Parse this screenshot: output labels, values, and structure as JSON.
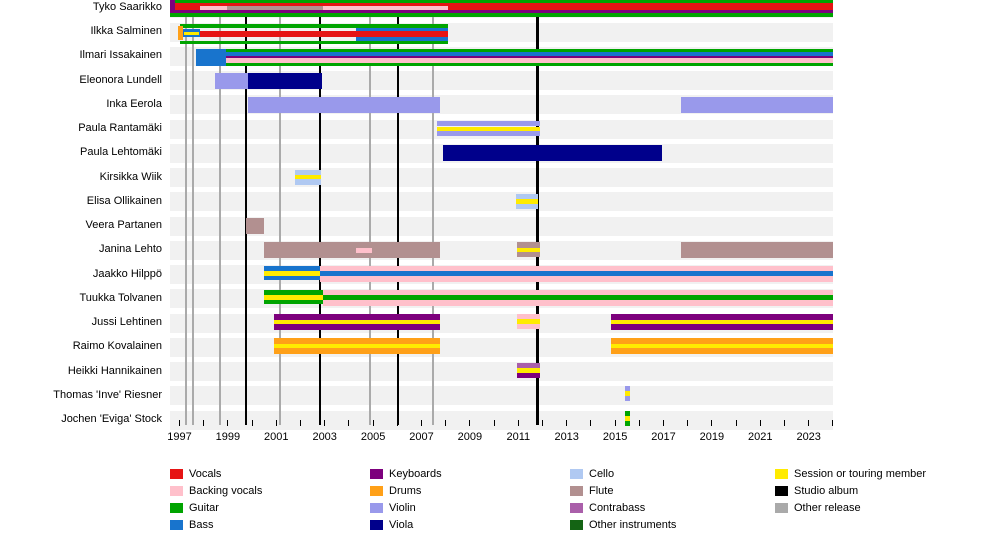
{
  "palette": {
    "vocals": "#E61414",
    "backing_vocals": "#FFC0CB",
    "guitar": "#00A400",
    "bass": "#1874CD",
    "keyboards": "#7D007D",
    "drums": "#FFA018",
    "violin": "#9999EB",
    "viola": "#00008B",
    "cello": "#B0C9F2",
    "flute": "#B29090",
    "contrabass": "#AA5FAA",
    "other_instruments": "#146414",
    "session": "#FFEB00",
    "studio_album": "#000000",
    "other_release": "#AAAAAA",
    "row_band": "#f1f1f1"
  },
  "chart_data": {
    "type": "timeline",
    "title": "",
    "x_axis": {
      "start_year": 1996.6,
      "end_year": 2024.0,
      "label_years": [
        1997,
        1999,
        2001,
        2003,
        2005,
        2007,
        2009,
        2011,
        2013,
        2015,
        2017,
        2019,
        2021,
        2023
      ],
      "tick_every_years": 1
    },
    "releases": {
      "studio_album_years": [
        1999.75,
        2002.8,
        2006.03,
        2011.8
      ],
      "other_release_years": [
        1997.27,
        1997.56,
        1998.67,
        2001.15,
        2004.87,
        2007.47
      ]
    },
    "members": [
      {
        "name": "Tyko Saarikko",
        "bars": [
          {
            "f": 1996.6,
            "t": 2024.0,
            "o": 2.0,
            "h": 3.4,
            "r": "guitar"
          },
          {
            "f": 1996.6,
            "t": 2024.0,
            "o": 5.4,
            "h": 6.4,
            "r": "vocals"
          },
          {
            "f": 1996.6,
            "t": 1996.82,
            "o": 2.0,
            "h": 11.0,
            "r": "keyboards"
          },
          {
            "f": 1997.85,
            "t": 1998.95,
            "o": 8.4,
            "h": 3.4,
            "r": "backing_vocals"
          },
          {
            "f": 1998.95,
            "t": 2002.93,
            "o": 8.4,
            "h": 3.4,
            "r": "flute"
          },
          {
            "f": 2002.93,
            "t": 2008.1,
            "o": 8.4,
            "h": 3.4,
            "r": "backing_vocals"
          },
          {
            "f": 1996.6,
            "t": 2024.0,
            "o": 11.8,
            "h": 3.2,
            "r": "keyboards"
          },
          {
            "f": 1996.6,
            "t": 2024.0,
            "o": 15.0,
            "h": 3.5,
            "r": "guitar"
          }
        ]
      },
      {
        "name": "Ilkka Salminen",
        "bars": [
          {
            "f": 1997.02,
            "t": 2008.1,
            "o": 1.8,
            "h": 3.5,
            "r": "guitar"
          },
          {
            "f": 2004.3,
            "t": 2008.1,
            "o": 5.3,
            "h": 3.5,
            "r": "bass"
          },
          {
            "f": 1996.94,
            "t": 1997.15,
            "o": 3.8,
            "h": 14.0,
            "r": "drums"
          },
          {
            "f": 1997.13,
            "t": 1997.85,
            "o": 6.8,
            "h": 8.0,
            "r": "bass"
          },
          {
            "f": 1997.85,
            "t": 2008.1,
            "o": 8.8,
            "h": 6.0,
            "r": "vocals"
          },
          {
            "f": 1997.19,
            "t": 1997.81,
            "o": 10.0,
            "h": 3.0,
            "r": "session"
          },
          {
            "f": 2004.3,
            "t": 2008.1,
            "o": 14.8,
            "h": 3.5,
            "r": "bass"
          },
          {
            "f": 1997.02,
            "t": 2008.1,
            "o": 18.3,
            "h": 3.5,
            "r": "guitar"
          }
        ]
      },
      {
        "name": "Ilmari Issakainen",
        "bars": [
          {
            "f": 1998.92,
            "t": 2024.0,
            "o": 2.5,
            "h": 3.4,
            "r": "guitar"
          },
          {
            "f": 1998.92,
            "t": 2024.0,
            "o": 5.9,
            "h": 3.3,
            "r": "bass"
          },
          {
            "f": 1998.92,
            "t": 2024.0,
            "o": 9.2,
            "h": 2.6,
            "r": "keyboards"
          },
          {
            "f": 1998.92,
            "t": 2024.0,
            "o": 11.8,
            "h": 4.6,
            "r": "backing_vocals"
          },
          {
            "f": 1998.92,
            "t": 2024.0,
            "o": 16.4,
            "h": 3.4,
            "r": "guitar"
          },
          {
            "f": 1997.68,
            "t": 1998.92,
            "o": 2.5,
            "h": 17.0,
            "r": "bass"
          }
        ]
      },
      {
        "name": "Eleonora Lundell",
        "bars": [
          {
            "f": 1998.47,
            "t": 1999.83,
            "o": 2.0,
            "h": 16.0,
            "r": "violin"
          },
          {
            "f": 1999.83,
            "t": 2002.89,
            "o": 2.0,
            "h": 16.0,
            "r": "viola"
          }
        ]
      },
      {
        "name": "Inka Eerola",
        "bars": [
          {
            "f": 1999.83,
            "t": 2007.77,
            "o": 2.0,
            "h": 16.0,
            "r": "violin"
          },
          {
            "f": 2017.72,
            "t": 2024.0,
            "o": 2.0,
            "h": 16.0,
            "r": "violin"
          }
        ]
      },
      {
        "name": "Paula Rantamäki",
        "bars": [
          {
            "f": 2007.64,
            "t": 2011.9,
            "o": 2.0,
            "h": 5.3,
            "r": "violin"
          },
          {
            "f": 2007.64,
            "t": 2011.9,
            "o": 7.3,
            "h": 4.4,
            "r": "session"
          },
          {
            "f": 2007.64,
            "t": 2011.9,
            "o": 11.7,
            "h": 5.3,
            "r": "violin"
          }
        ]
      },
      {
        "name": "Paula Lehtomäki",
        "bars": [
          {
            "f": 2007.89,
            "t": 2016.94,
            "o": 2.0,
            "h": 16.0,
            "r": "viola"
          }
        ]
      },
      {
        "name": "Kirsikka Wiik",
        "bars": [
          {
            "f": 2001.77,
            "t": 2002.85,
            "o": 2.0,
            "h": 5.3,
            "r": "cello"
          },
          {
            "f": 2001.77,
            "t": 2002.85,
            "o": 7.3,
            "h": 4.4,
            "r": "session"
          },
          {
            "f": 2001.77,
            "t": 2002.85,
            "o": 11.7,
            "h": 5.3,
            "r": "cello"
          }
        ]
      },
      {
        "name": "Elisa Ollikainen",
        "bars": [
          {
            "f": 2010.9,
            "t": 2011.8,
            "o": 2.0,
            "h": 5.3,
            "r": "cello"
          },
          {
            "f": 2010.9,
            "t": 2011.8,
            "o": 7.3,
            "h": 4.4,
            "r": "session"
          },
          {
            "f": 2010.9,
            "t": 2011.8,
            "o": 11.7,
            "h": 5.3,
            "r": "cello"
          }
        ]
      },
      {
        "name": "Veera Partanen",
        "bars": [
          {
            "f": 1999.75,
            "t": 2000.49,
            "o": 2.0,
            "h": 16.0,
            "r": "flute"
          }
        ]
      },
      {
        "name": "Janina Lehto",
        "bars": [
          {
            "f": 2000.49,
            "t": 2007.77,
            "o": 2.0,
            "h": 16.0,
            "r": "flute"
          },
          {
            "f": 2004.3,
            "t": 2004.95,
            "o": 7.5,
            "h": 5.0,
            "r": "backing_vocals"
          },
          {
            "f": 2010.95,
            "t": 2011.9,
            "o": 2.0,
            "h": 5.3,
            "r": "flute"
          },
          {
            "f": 2010.95,
            "t": 2011.9,
            "o": 7.3,
            "h": 4.4,
            "r": "session"
          },
          {
            "f": 2010.95,
            "t": 2011.9,
            "o": 11.7,
            "h": 5.3,
            "r": "flute"
          },
          {
            "f": 2017.72,
            "t": 2024.0,
            "o": 2.0,
            "h": 16.0,
            "r": "flute"
          }
        ]
      },
      {
        "name": "Jaakko Hilppö",
        "bars": [
          {
            "f": 2000.49,
            "t": 2002.8,
            "o": 1.8,
            "h": 4.5,
            "r": "bass"
          },
          {
            "f": 2000.49,
            "t": 2002.8,
            "o": 6.3,
            "h": 5.0,
            "r": "session"
          },
          {
            "f": 2000.49,
            "t": 2002.8,
            "o": 11.3,
            "h": 4.5,
            "r": "bass"
          },
          {
            "f": 2002.8,
            "t": 2024.0,
            "o": 1.8,
            "h": 15.5,
            "r": "backing_vocals"
          },
          {
            "f": 2002.8,
            "t": 2024.0,
            "o": 6.8,
            "h": 5.0,
            "r": "bass"
          }
        ]
      },
      {
        "name": "Tuukka Tolvanen",
        "bars": [
          {
            "f": 2000.49,
            "t": 2002.93,
            "o": 1.5,
            "h": 4.5,
            "r": "guitar"
          },
          {
            "f": 2000.49,
            "t": 2002.93,
            "o": 6.0,
            "h": 5.0,
            "r": "session"
          },
          {
            "f": 2000.49,
            "t": 2002.93,
            "o": 11.0,
            "h": 4.5,
            "r": "guitar"
          },
          {
            "f": 2002.93,
            "t": 2024.0,
            "o": 1.5,
            "h": 15.5,
            "r": "backing_vocals"
          },
          {
            "f": 2002.93,
            "t": 2024.0,
            "o": 6.2,
            "h": 4.6,
            "r": "guitar"
          }
        ]
      },
      {
        "name": "Jussi Lehtinen",
        "bars": [
          {
            "f": 2000.9,
            "t": 2007.77,
            "o": 0.8,
            "h": 6.0,
            "r": "keyboards"
          },
          {
            "f": 2000.9,
            "t": 2007.77,
            "o": 6.8,
            "h": 3.8,
            "r": "session"
          },
          {
            "f": 2000.9,
            "t": 2007.77,
            "o": 10.6,
            "h": 6.2,
            "r": "keyboards"
          },
          {
            "f": 2010.95,
            "t": 2011.9,
            "o": 1.0,
            "h": 5.0,
            "r": "backing_vocals"
          },
          {
            "f": 2010.95,
            "t": 2011.9,
            "o": 6.0,
            "h": 5.0,
            "r": "session"
          },
          {
            "f": 2010.95,
            "t": 2011.9,
            "o": 11.0,
            "h": 5.0,
            "r": "backing_vocals"
          },
          {
            "f": 2014.83,
            "t": 2024.0,
            "o": 0.8,
            "h": 6.0,
            "r": "keyboards"
          },
          {
            "f": 2014.83,
            "t": 2024.0,
            "o": 6.8,
            "h": 3.8,
            "r": "session"
          },
          {
            "f": 2014.83,
            "t": 2024.0,
            "o": 10.6,
            "h": 6.2,
            "r": "keyboards"
          }
        ]
      },
      {
        "name": "Raimo Kovalainen",
        "bars": [
          {
            "f": 2000.9,
            "t": 2007.77,
            "o": 1.0,
            "h": 5.6,
            "r": "drums"
          },
          {
            "f": 2000.9,
            "t": 2007.77,
            "o": 6.6,
            "h": 4.0,
            "r": "session"
          },
          {
            "f": 2000.9,
            "t": 2007.77,
            "o": 10.6,
            "h": 5.8,
            "r": "drums"
          },
          {
            "f": 2014.83,
            "t": 2024.0,
            "o": 1.0,
            "h": 5.6,
            "r": "drums"
          },
          {
            "f": 2014.83,
            "t": 2024.0,
            "o": 6.6,
            "h": 4.0,
            "r": "session"
          },
          {
            "f": 2014.83,
            "t": 2024.0,
            "o": 10.6,
            "h": 5.8,
            "r": "drums"
          }
        ]
      },
      {
        "name": "Heikki Hannikainen",
        "bars": [
          {
            "f": 2010.95,
            "t": 2011.9,
            "o": 1.0,
            "h": 5.0,
            "r": "contrabass"
          },
          {
            "f": 2010.95,
            "t": 2011.9,
            "o": 6.0,
            "h": 5.0,
            "r": "session"
          },
          {
            "f": 2010.95,
            "t": 2011.9,
            "o": 11.0,
            "h": 5.0,
            "r": "keyboards"
          }
        ]
      },
      {
        "name": "Thomas 'Inve' Riesner",
        "bars": [
          {
            "f": 2015.41,
            "t": 2015.61,
            "o": 0.5,
            "h": 5.0,
            "r": "violin"
          },
          {
            "f": 2015.41,
            "t": 2015.61,
            "o": 5.5,
            "h": 4.5,
            "r": "session"
          },
          {
            "f": 2015.41,
            "t": 2015.61,
            "o": 10.0,
            "h": 5.0,
            "r": "violin"
          }
        ]
      },
      {
        "name": "Jochen 'Eviga' Stock",
        "bars": [
          {
            "f": 2015.41,
            "t": 2015.61,
            "o": 1.0,
            "h": 5.0,
            "r": "guitar"
          },
          {
            "f": 2015.41,
            "t": 2015.61,
            "o": 6.0,
            "h": 4.5,
            "r": "session"
          },
          {
            "f": 2015.41,
            "t": 2015.61,
            "o": 10.5,
            "h": 5.0,
            "r": "guitar"
          }
        ]
      }
    ],
    "legend": {
      "columns": [
        [
          {
            "label": "Vocals",
            "color": "vocals"
          },
          {
            "label": "Backing vocals",
            "color": "backing_vocals"
          },
          {
            "label": "Guitar",
            "color": "guitar"
          },
          {
            "label": "Bass",
            "color": "bass"
          }
        ],
        [
          {
            "label": "Keyboards",
            "color": "keyboards"
          },
          {
            "label": "Drums",
            "color": "drums"
          },
          {
            "label": "Violin",
            "color": "violin"
          },
          {
            "label": "Viola",
            "color": "viola"
          }
        ],
        [
          {
            "label": "Cello",
            "color": "cello"
          },
          {
            "label": "Flute",
            "color": "flute"
          },
          {
            "label": "Contrabass",
            "color": "contrabass"
          },
          {
            "label": "Other instruments",
            "color": "other_instruments"
          }
        ],
        [
          {
            "label": "Session or touring member",
            "color": "session"
          },
          {
            "label": "Studio album",
            "color": "studio_album"
          },
          {
            "label": "Other release",
            "color": "other_release"
          }
        ]
      ]
    }
  }
}
